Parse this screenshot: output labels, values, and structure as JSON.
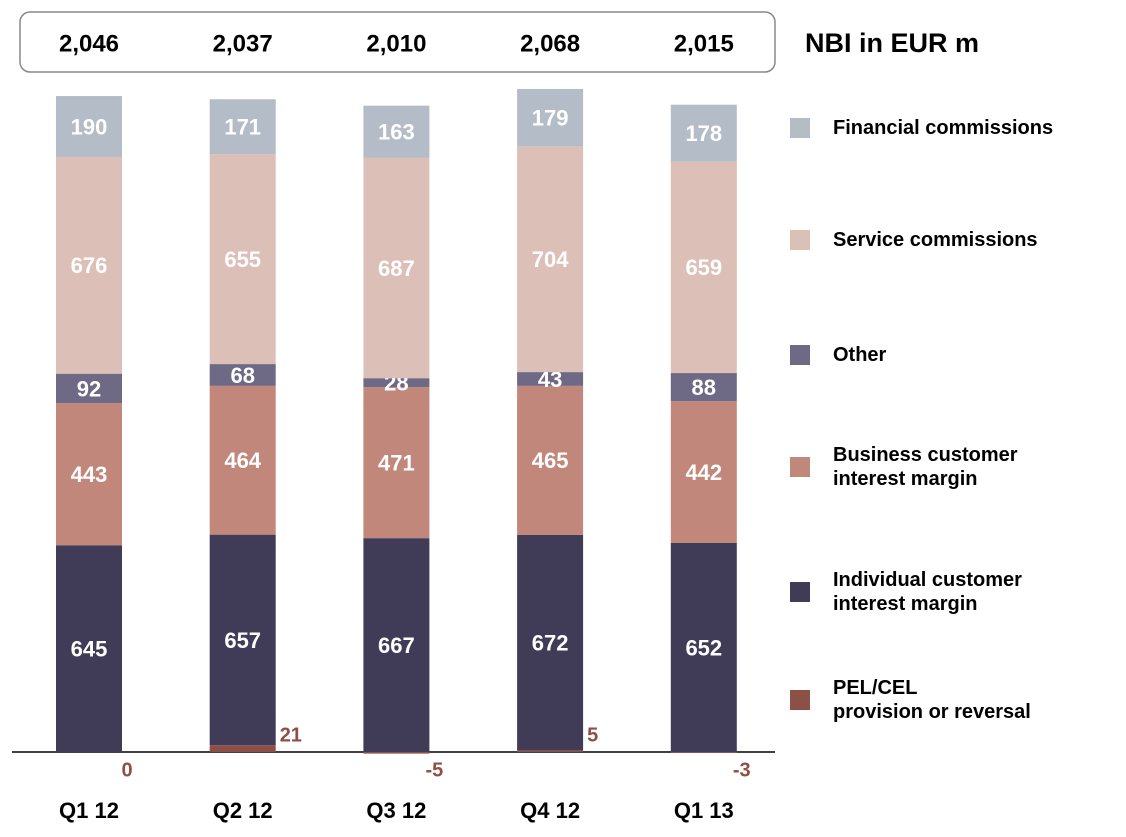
{
  "chart_data": {
    "type": "stacked_bar",
    "title": "NBI in EUR m",
    "categories": [
      "Q1 12",
      "Q2 12",
      "Q3 12",
      "Q4 12",
      "Q1 13"
    ],
    "total": {
      "values": [
        2046,
        2037,
        2010,
        2068,
        2015
      ],
      "value_labels": [
        "2,046",
        "2,037",
        "2,010",
        "2,068",
        "2,015"
      ]
    },
    "series": [
      {
        "name": "PEL/CEL\nprovision or reversal",
        "color": "#8c5046",
        "values": [
          0,
          21,
          -5,
          5,
          -3
        ]
      },
      {
        "name": "Individual customer\ninterest margin",
        "color": "#403c58",
        "values": [
          645,
          657,
          667,
          672,
          652
        ]
      },
      {
        "name": "Business customer\ninterest margin",
        "color": "#c0877a",
        "values": [
          443,
          464,
          471,
          465,
          442
        ]
      },
      {
        "name": "Other",
        "color": "#6e6a85",
        "values": [
          92,
          68,
          28,
          43,
          88
        ]
      },
      {
        "name": "Service commissions",
        "color": "#dcc0b8",
        "values": [
          676,
          655,
          687,
          704,
          659
        ]
      },
      {
        "name": "Financial commissions",
        "color": "#b4bcc8",
        "values": [
          190,
          171,
          163,
          179,
          178
        ]
      }
    ]
  }
}
